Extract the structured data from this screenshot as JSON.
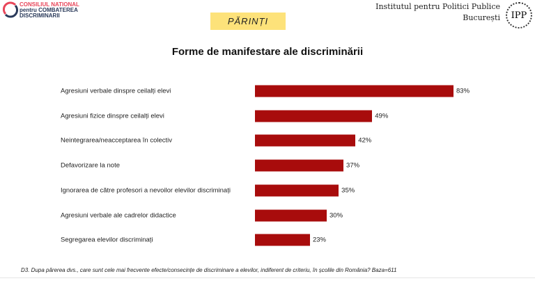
{
  "header": {
    "logo_left_lines": [
      "CONSILIUL NATIONAL",
      "pentru COMBATEREA",
      "DISCRIMINARII"
    ],
    "logo_right_lines": [
      "Institutul pentru Politici Publice",
      "București"
    ],
    "logo_right_mark": "IPP",
    "badge": "PĂRINȚI",
    "badge_color": "#fde27a"
  },
  "chart_data": {
    "type": "bar",
    "orientation": "horizontal",
    "title": "Forme de manifestare ale discriminării",
    "categories": [
      "Agresiuni verbale dinspre ceilalți elevi",
      "Agresiuni fizice dinspre ceilalți elevi",
      "Neintegrarea/neacceptarea în colectiv",
      "Defavorizare la note",
      "Ignorarea de către profesori a nevoilor elevilor discriminați",
      "Agresiuni verbale ale cadrelor didactice",
      "Segregarea elevilor discriminați"
    ],
    "values": [
      83,
      49,
      42,
      37,
      35,
      30,
      23
    ],
    "value_labels": [
      "83%",
      "49%",
      "42%",
      "37%",
      "35%",
      "30%",
      "23%"
    ],
    "unit": "%",
    "bar_color": "#a80c0c",
    "grid": false
  },
  "footnote": "D3. Dupa părerea dvs., care sunt cele mai frecvente efecte/consecințe de discriminare a elevilor, indiferent de criteriu, în școlile din România? Baza=611"
}
